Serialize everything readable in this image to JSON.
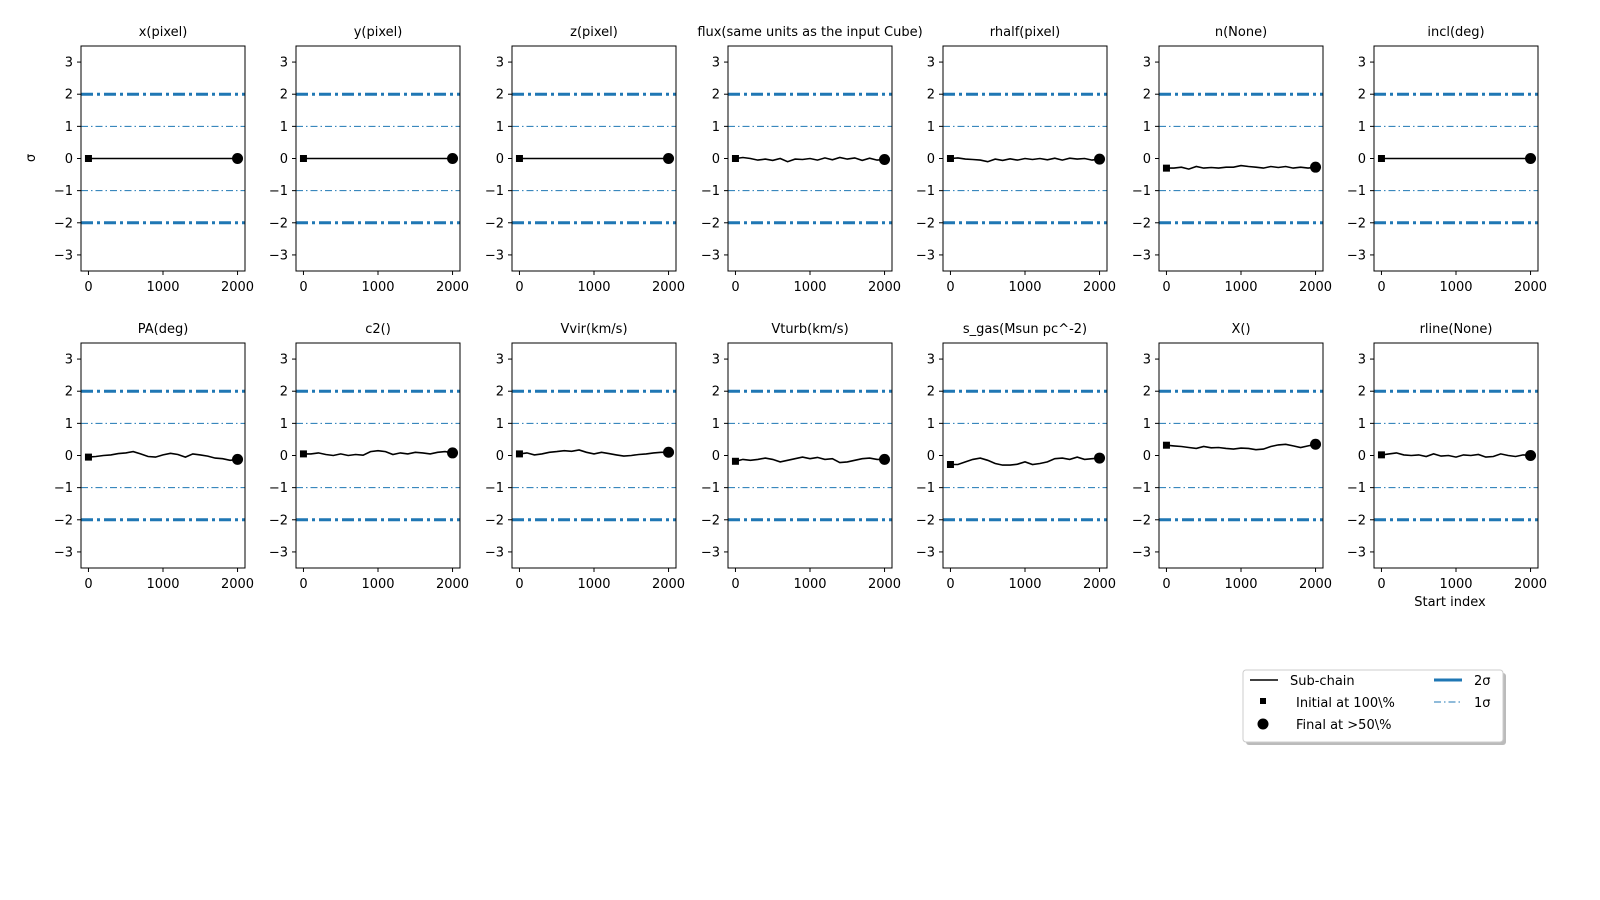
{
  "ylabel": "σ",
  "xlabel": "Start index",
  "yticks": [
    "3",
    "2",
    "1",
    "0",
    "−1",
    "−2",
    "−3"
  ],
  "xticks": [
    "0",
    "1000",
    "2000"
  ],
  "legend": {
    "placement": "lower-right",
    "subchain": "Sub-chain",
    "initial": "Initial at 100\\%",
    "final": "Final at  >50\\%",
    "two_sigma": "2σ",
    "one_sigma": "1σ"
  },
  "colors": {
    "sigma_lines": "#1f77b4",
    "chain": "#000000"
  },
  "chart_data": {
    "type": "line",
    "xlim": [
      -100,
      2100
    ],
    "ylim": [
      -3.5,
      3.5
    ],
    "grid": false,
    "reference_lines": [
      {
        "name": "2σ",
        "values": [
          2,
          -2
        ],
        "style": "dashdot-thick"
      },
      {
        "name": "1σ",
        "values": [
          1,
          -1
        ],
        "style": "dashdot-thin"
      }
    ],
    "panels": [
      {
        "title": "x(pixel)",
        "x": [
          0,
          2000
        ],
        "y": [
          0,
          0
        ]
      },
      {
        "title": "y(pixel)",
        "x": [
          0,
          2000
        ],
        "y": [
          0,
          0
        ]
      },
      {
        "title": "z(pixel)",
        "x": [
          0,
          2000
        ],
        "y": [
          0,
          0
        ]
      },
      {
        "title": "flux(same units as the input Cube)",
        "x": [
          0,
          100,
          200,
          300,
          400,
          500,
          600,
          700,
          800,
          900,
          1000,
          1100,
          1200,
          1300,
          1400,
          1500,
          1600,
          1700,
          1800,
          1900,
          2000
        ],
        "y": [
          0,
          0.03,
          0,
          -0.05,
          -0.02,
          -0.06,
          0,
          -0.1,
          -0.02,
          -0.03,
          0,
          -0.05,
          0.02,
          -0.04,
          0.03,
          -0.02,
          0.02,
          -0.06,
          0.01,
          -0.05,
          -0.03
        ]
      },
      {
        "title": "rhalf(pixel)",
        "x": [
          0,
          100,
          200,
          300,
          400,
          500,
          600,
          700,
          800,
          900,
          1000,
          1100,
          1200,
          1300,
          1400,
          1500,
          1600,
          1700,
          1800,
          1900,
          2000
        ],
        "y": [
          0,
          0.02,
          -0.02,
          -0.03,
          -0.05,
          -0.1,
          -0.02,
          -0.06,
          -0.01,
          -0.05,
          0,
          -0.03,
          0,
          -0.04,
          0.01,
          -0.05,
          0.01,
          -0.02,
          0,
          -0.05,
          -0.02
        ]
      },
      {
        "title": "n(None)",
        "x": [
          0,
          100,
          200,
          300,
          400,
          500,
          600,
          700,
          800,
          900,
          1000,
          1100,
          1200,
          1300,
          1400,
          1500,
          1600,
          1700,
          1800,
          1900,
          2000
        ],
        "y": [
          -0.3,
          -0.3,
          -0.27,
          -0.33,
          -0.25,
          -0.3,
          -0.28,
          -0.3,
          -0.27,
          -0.27,
          -0.22,
          -0.25,
          -0.27,
          -0.3,
          -0.25,
          -0.28,
          -0.25,
          -0.3,
          -0.27,
          -0.3,
          -0.27
        ]
      },
      {
        "title": "incl(deg)",
        "x": [
          0,
          2000
        ],
        "y": [
          0,
          0
        ]
      },
      {
        "title": "PA(deg)",
        "x": [
          0,
          100,
          200,
          300,
          400,
          500,
          600,
          700,
          800,
          900,
          1000,
          1100,
          1200,
          1300,
          1400,
          1500,
          1600,
          1700,
          1800,
          1900,
          2000
        ],
        "y": [
          -0.05,
          -0.03,
          0,
          0.02,
          0.06,
          0.08,
          0.12,
          0.05,
          -0.03,
          -0.05,
          0.02,
          0.07,
          0.03,
          -0.05,
          0.05,
          0.02,
          -0.02,
          -0.08,
          -0.1,
          -0.15,
          -0.12
        ]
      },
      {
        "title": "c2()",
        "x": [
          0,
          100,
          200,
          300,
          400,
          500,
          600,
          700,
          800,
          900,
          1000,
          1100,
          1200,
          1300,
          1400,
          1500,
          1600,
          1700,
          1800,
          1900,
          2000
        ],
        "y": [
          0.05,
          0.05,
          0.08,
          0.03,
          0,
          0.05,
          0,
          0.03,
          0.01,
          0.12,
          0.15,
          0.12,
          0.03,
          0.08,
          0.05,
          0.1,
          0.08,
          0.05,
          0.1,
          0.12,
          0.08
        ]
      },
      {
        "title": "Vvir(km/s)",
        "x": [
          0,
          100,
          200,
          300,
          400,
          500,
          600,
          700,
          800,
          900,
          1000,
          1100,
          1200,
          1300,
          1400,
          1500,
          1600,
          1700,
          1800,
          1900,
          2000
        ],
        "y": [
          0.05,
          0.08,
          0.02,
          0.05,
          0.1,
          0.12,
          0.15,
          0.13,
          0.17,
          0.1,
          0.05,
          0.1,
          0.06,
          0.02,
          -0.02,
          0,
          0.03,
          0.05,
          0.08,
          0.1,
          0.1
        ]
      },
      {
        "title": "Vturb(km/s)",
        "x": [
          0,
          100,
          200,
          300,
          400,
          500,
          600,
          700,
          800,
          900,
          1000,
          1100,
          1200,
          1300,
          1400,
          1500,
          1600,
          1700,
          1800,
          1900,
          2000
        ],
        "y": [
          -0.18,
          -0.12,
          -0.15,
          -0.12,
          -0.08,
          -0.12,
          -0.2,
          -0.15,
          -0.1,
          -0.05,
          -0.1,
          -0.06,
          -0.12,
          -0.1,
          -0.22,
          -0.2,
          -0.15,
          -0.1,
          -0.08,
          -0.12,
          -0.12
        ]
      },
      {
        "title": "s_gas(Msun pc^-2)",
        "x": [
          0,
          100,
          200,
          300,
          400,
          500,
          600,
          700,
          800,
          900,
          1000,
          1100,
          1200,
          1300,
          1400,
          1500,
          1600,
          1700,
          1800,
          1900,
          2000
        ],
        "y": [
          -0.28,
          -0.28,
          -0.2,
          -0.12,
          -0.08,
          -0.15,
          -0.25,
          -0.3,
          -0.3,
          -0.27,
          -0.2,
          -0.28,
          -0.25,
          -0.2,
          -0.1,
          -0.08,
          -0.12,
          -0.05,
          -0.12,
          -0.1,
          -0.08
        ]
      },
      {
        "title": "X()",
        "x": [
          0,
          100,
          200,
          300,
          400,
          500,
          600,
          700,
          800,
          900,
          1000,
          1100,
          1200,
          1300,
          1400,
          1500,
          1600,
          1700,
          1800,
          1900,
          2000
        ],
        "y": [
          0.32,
          0.3,
          0.28,
          0.25,
          0.22,
          0.28,
          0.24,
          0.25,
          0.22,
          0.2,
          0.23,
          0.22,
          0.18,
          0.2,
          0.28,
          0.33,
          0.35,
          0.3,
          0.25,
          0.3,
          0.35
        ]
      },
      {
        "title": "rline(None)",
        "x": [
          0,
          100,
          200,
          300,
          400,
          500,
          600,
          700,
          800,
          900,
          1000,
          1100,
          1200,
          1300,
          1400,
          1500,
          1600,
          1700,
          1800,
          1900,
          2000
        ],
        "y": [
          0.02,
          0.05,
          0.08,
          0.02,
          0,
          0.02,
          -0.03,
          0.05,
          -0.02,
          0,
          -0.05,
          0.02,
          0,
          0.03,
          -0.05,
          -0.03,
          0.05,
          0,
          -0.03,
          0.02,
          0
        ]
      }
    ]
  }
}
